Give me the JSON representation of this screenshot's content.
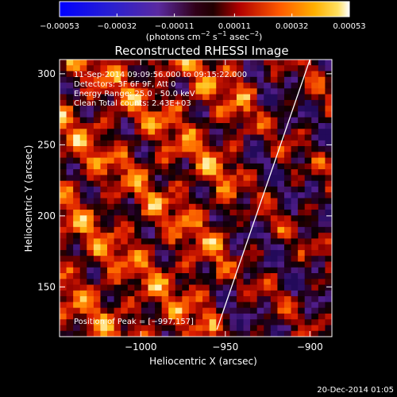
{
  "chart_data": {
    "type": "heatmap",
    "title": "Reconstructed RHESSI Image",
    "xlabel": "Heliocentric X (arcsec)",
    "ylabel": "Heliocentric Y (arcsec)",
    "xlim": [
      -1048,
      -887
    ],
    "ylim": [
      115,
      310
    ],
    "x_ticks": [
      -1000,
      -950,
      -900
    ],
    "x_tick_labels": [
      "−1000",
      "−950",
      "−900"
    ],
    "y_ticks": [
      150,
      200,
      250,
      300
    ],
    "y_tick_labels": [
      "150",
      "200",
      "250",
      "300"
    ],
    "colorbar": {
      "range": [
        -0.00053,
        0.00053
      ],
      "ticks": [
        -0.00053,
        -0.00032,
        -0.00011,
        0.00011,
        0.00032,
        0.00053
      ],
      "tick_labels": [
        "−0.00053",
        "−0.00032",
        "−0.00011",
        "0.00011",
        "0.00032",
        "0.00053"
      ],
      "units_main": "(photons cm",
      "units_exp1": "−2",
      "units_mid": " s",
      "units_exp2": "−1",
      "units_end": " asec",
      "units_exp3": "−2",
      "units_close": ")"
    },
    "annotations": [
      "11-Sep-2014 09:09:56.000 to 09:15:22.000",
      "Detectors: 3F 6F 9F, Att 0",
      "Energy Range: 25.0 - 50.0 keV",
      "Clean    Total counts: 2.43E+03"
    ],
    "peak_label": "Position of Peak = [−997,157]",
    "limb_line": [
      [
        -955,
        120
      ],
      [
        -900,
        310
      ]
    ],
    "grid_cols": 40,
    "grid_rows": 48,
    "colors": {
      "background": "#000000",
      "text": "#ffffff",
      "limb": "#ffffff"
    }
  },
  "footer": {
    "date": "20-Dec-2014 01:05"
  }
}
